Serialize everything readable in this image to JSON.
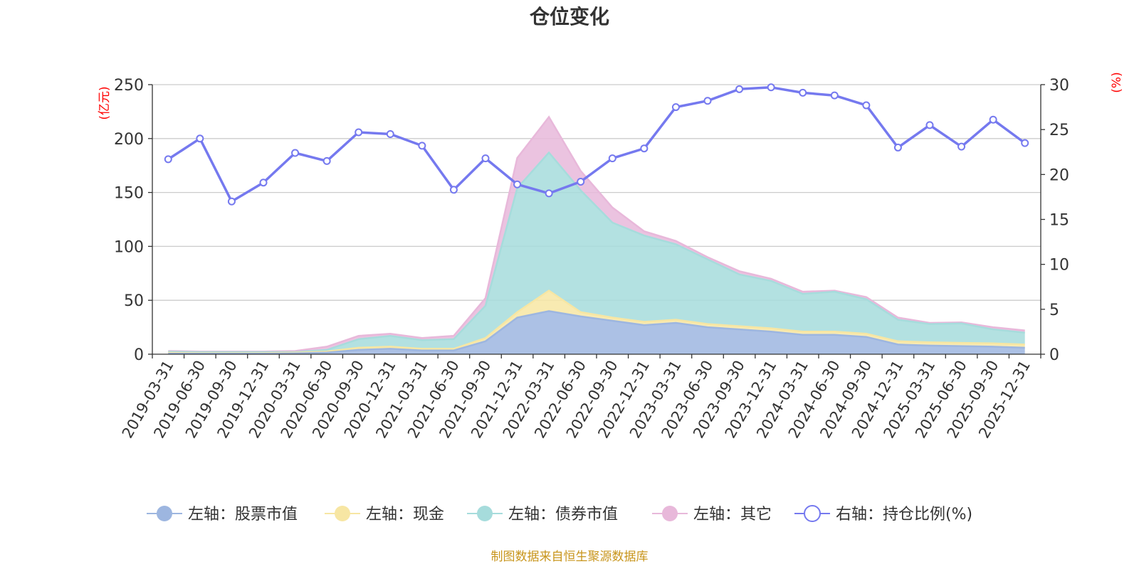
{
  "colors": {
    "stock": "#9db6e0",
    "cash": "#f7e6a3",
    "bond": "#a6dcdc",
    "other": "#e8b8da",
    "ratio": "#7579ef",
    "grid": "#cccccc",
    "axis": "#333333",
    "unit": "#ff0000",
    "source": "#c8951c",
    "title": "#333333"
  },
  "chart_data": {
    "type": "area",
    "title": "仓位变化",
    "left_unit": "(亿元)",
    "right_unit": "(%)",
    "ylim_left": [
      0,
      250
    ],
    "yticks_left": [
      0,
      50,
      100,
      150,
      200,
      250
    ],
    "ylim_right": [
      0,
      30
    ],
    "yticks_right": [
      0,
      5,
      10,
      15,
      20,
      25,
      30
    ],
    "x_labels": [
      "2019-03-31",
      "2019-06-30",
      "2019-09-30",
      "2019-12-31",
      "2020-03-31",
      "2020-06-30",
      "2020-09-30",
      "2020-12-31",
      "2021-03-31",
      "2021-06-30",
      "2021-09-30",
      "2021-12-31",
      "2022-03-31",
      "2022-06-30",
      "2022-09-30",
      "2022-12-31",
      "2023-03-31",
      "2023-06-30",
      "2023-09-30",
      "2023-12-31",
      "2024-03-31",
      "2024-06-30",
      "2024-09-30",
      "2024-12-31",
      "2025-03-31",
      "2025-06-30",
      "2025-09-30",
      "2025-12-31"
    ],
    "stacked": true,
    "series": [
      {
        "name": "左轴：股票市值",
        "axis": "left",
        "type": "area",
        "values": [
          0.5,
          0.5,
          0.5,
          0.5,
          0.8,
          1.5,
          4,
          5,
          3.5,
          3.5,
          12,
          34,
          40,
          35,
          31,
          27,
          29,
          25,
          23,
          21,
          18,
          18,
          16,
          9,
          8,
          7.5,
          7,
          6
        ]
      },
      {
        "name": "左轴：现金",
        "axis": "left",
        "type": "area",
        "values": [
          0.8,
          0.5,
          0.5,
          0.5,
          0.7,
          1,
          2,
          2,
          1.5,
          1.5,
          3,
          5,
          19,
          4,
          3,
          3,
          3,
          3,
          3,
          3,
          3,
          3,
          3,
          3,
          3,
          3,
          3,
          3
        ]
      },
      {
        "name": "左轴：债券市值",
        "axis": "left",
        "type": "area",
        "values": [
          1,
          1,
          1,
          1,
          0.5,
          1.5,
          8,
          10,
          8,
          9,
          30,
          115,
          128,
          113,
          88,
          80,
          70,
          60,
          48,
          44,
          35,
          37,
          32,
          20,
          17,
          18,
          13,
          11
        ]
      },
      {
        "name": "左轴：其它",
        "axis": "left",
        "type": "area",
        "values": [
          0.7,
          0.5,
          0.5,
          0.5,
          1,
          3,
          3,
          2,
          2,
          3,
          7,
          28,
          33,
          18,
          14,
          4,
          3,
          2,
          3,
          2,
          2,
          1,
          2,
          2,
          1,
          1,
          2,
          2
        ]
      },
      {
        "name": "右轴：持仓比例(%)",
        "axis": "right",
        "type": "line",
        "values": [
          21.7,
          24,
          17,
          19.1,
          22.4,
          21.5,
          24.7,
          24.5,
          23.2,
          18.3,
          21.8,
          18.9,
          17.9,
          19.2,
          21.8,
          22.9,
          27.5,
          28.2,
          29.5,
          29.7,
          29.1,
          28.8,
          27.7,
          23,
          25.5,
          23.1,
          26.1,
          23.5
        ]
      }
    ]
  },
  "legend": [
    {
      "label": "左轴：股票市值",
      "color_key": "stock"
    },
    {
      "label": "左轴：现金",
      "color_key": "cash"
    },
    {
      "label": "左轴：债券市值",
      "color_key": "bond"
    },
    {
      "label": "左轴：其它",
      "color_key": "other"
    },
    {
      "label": "右轴：持仓比例(%)",
      "color_key": "ratio"
    }
  ],
  "source_text": "制图数据来自恒生聚源数据库"
}
